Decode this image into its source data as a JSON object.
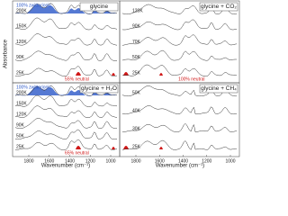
{
  "y_axis_label": "Absorbance",
  "x_axis_label": "Wavenumber (cm⁻¹)",
  "x_ticks": [
    "1800",
    "1600",
    "1400",
    "1200",
    "1000"
  ],
  "panels": [
    {
      "title": "glycine",
      "temperatures": [
        "200K",
        "150K",
        "120K",
        "90K",
        "25K"
      ],
      "annotations": [
        "100% zwitterionic",
        "55% neutral"
      ]
    },
    {
      "title": "glycine + CO₂",
      "temperatures": [
        "120K",
        "90K",
        "70K",
        "50K",
        "25K"
      ],
      "annotations": [
        "100% neutral"
      ]
    },
    {
      "title": "glycine + H₂O",
      "temperatures": [
        "200K",
        "150K",
        "120K",
        "90K",
        "50K",
        "25K"
      ],
      "annotations": [
        "100% zwitterionic",
        "65% neutral"
      ]
    },
    {
      "title": "glycine + CH₄",
      "temperatures": [
        "50K",
        "40K",
        "30K",
        "25K"
      ],
      "annotations": []
    }
  ]
}
